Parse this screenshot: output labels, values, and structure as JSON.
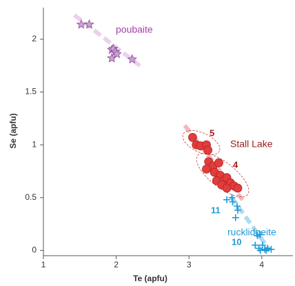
{
  "chart_data": {
    "type": "scatter",
    "xlabel": "Te (apfu)",
    "ylabel": "Se (apfu)",
    "xlim": [
      1,
      4.4
    ],
    "ylim": [
      -0.05,
      2.3
    ],
    "xticks": [
      1,
      2,
      3,
      4
    ],
    "yticks": [
      0,
      0.5,
      1,
      1.5,
      2
    ],
    "annotations": [
      "5",
      "4",
      "11",
      "10"
    ],
    "series": [
      {
        "name": "poubaite",
        "color": "#a040a8",
        "marker": "star",
        "x": [
          1.52,
          1.63,
          1.94,
          1.96,
          1.99,
          1.94,
          2.01,
          2.22
        ],
        "values": [
          2.14,
          2.14,
          1.9,
          1.91,
          1.88,
          1.82,
          1.86,
          1.81
        ]
      },
      {
        "name": "Stall Lake",
        "color": "#e23c3c",
        "marker": "circle",
        "x": [
          3.05,
          3.1,
          3.16,
          3.24,
          3.26,
          3.27,
          3.33,
          3.41,
          3.24,
          3.35,
          3.43,
          3.38,
          3.48,
          3.52,
          3.57,
          3.62,
          3.67,
          3.45,
          3.52
        ],
        "values": [
          1.07,
          1.0,
          0.99,
          1.0,
          0.95,
          0.84,
          0.8,
          0.83,
          0.77,
          0.74,
          0.71,
          0.66,
          0.66,
          0.69,
          0.64,
          0.61,
          0.59,
          0.62,
          0.59
        ]
      },
      {
        "name": "rucklidgeite",
        "color": "#1e9ad6",
        "marker": "plus",
        "x": [
          3.52,
          3.6,
          3.59,
          3.66,
          3.67,
          3.64,
          3.94,
          3.98,
          3.91,
          3.96,
          4.01,
          4.04,
          4.08,
          4.13,
          3.98,
          4.06
        ],
        "values": [
          0.48,
          0.46,
          0.5,
          0.42,
          0.38,
          0.31,
          0.14,
          0.15,
          0.05,
          0.02,
          0.05,
          0.01,
          0.02,
          0.01,
          0.0,
          0.0
        ]
      }
    ]
  }
}
